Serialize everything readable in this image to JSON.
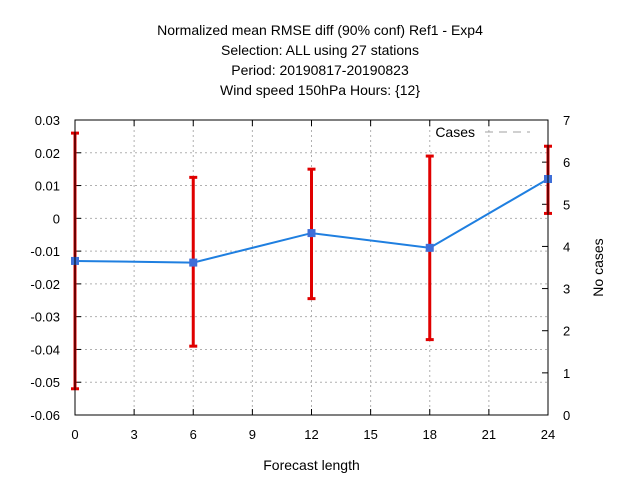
{
  "chart_data": {
    "type": "line",
    "title_lines": [
      "Normalized mean RMSE diff (90% conf) Ref1 - Exp4",
      "Selection: ALL using    27 stations",
      "Period: 20190817-20190823",
      "Wind speed 150hPa   Hours: {12}"
    ],
    "xlabel": "Forecast length",
    "ylabel": "",
    "y2label": "No cases",
    "xlim": [
      0,
      24
    ],
    "ylim": [
      -0.06,
      0.03
    ],
    "y2lim": [
      0,
      7
    ],
    "x_ticks": [
      "0",
      "3",
      "6",
      "9",
      "12",
      "15",
      "18",
      "21",
      "24"
    ],
    "y_ticks": [
      "-0.06",
      "-0.05",
      "-0.04",
      "-0.03",
      "-0.02",
      "-0.01",
      "0",
      "0.01",
      "0.02",
      "0.03"
    ],
    "y2_ticks": [
      "0",
      "1",
      "2",
      "3",
      "4",
      "5",
      "6",
      "7"
    ],
    "grid": true,
    "legend_position": "top-right",
    "legend": [
      {
        "name": "Cases",
        "style": "dashed",
        "color": "#a0a0a0"
      }
    ],
    "series": [
      {
        "x": [
          0,
          6,
          12,
          18,
          24
        ],
        "values": [
          -0.013,
          -0.0135,
          -0.0045,
          -0.009,
          0.012
        ],
        "color": "#1f7fe0"
      }
    ],
    "error_bars": {
      "color": "#e00000",
      "x": [
        0,
        6,
        12,
        18,
        24
      ],
      "low": [
        -0.052,
        -0.039,
        -0.0245,
        -0.037,
        0.0015
      ],
      "high": [
        0.026,
        0.0125,
        0.015,
        0.019,
        0.022
      ]
    },
    "cases": {
      "x": [
        0,
        6,
        12,
        18,
        24
      ],
      "values": [
        7,
        7,
        7,
        7,
        7
      ],
      "color": "#a0a0a0"
    }
  }
}
